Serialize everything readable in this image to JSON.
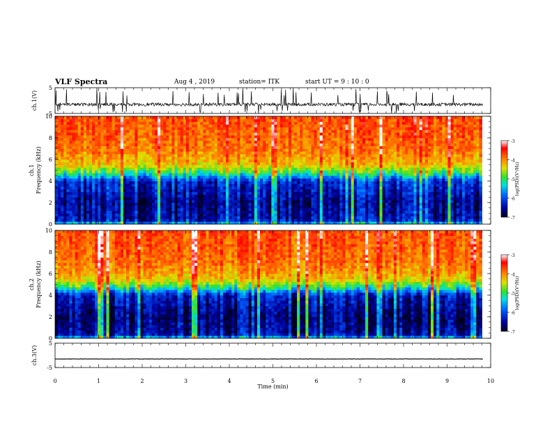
{
  "header": {
    "title": "VLF Spectra",
    "date": "Aug 4 , 2019",
    "station": "station= ITK",
    "start": "start UT =  9 : 10 : 0"
  },
  "chart_data": [
    {
      "type": "line",
      "panel": "ch1-waveform",
      "ylabel": "ch.1(V)",
      "yticks": [
        "5",
        "-5"
      ],
      "ylim": [
        -5,
        5
      ],
      "xlim": [
        0,
        10
      ],
      "baseline": -1.5,
      "description_series": "noisy trace around -1.5 V with spikes to about +5 and -5"
    },
    {
      "type": "heatmap",
      "panel": "ch1-spectrogram",
      "ylabel": "ch.1 Frequency (kHz)",
      "yticks": [
        "0",
        "2",
        "4",
        "6",
        "8",
        "10"
      ],
      "ylim": [
        0,
        10
      ],
      "xlim": [
        0,
        9.8
      ],
      "colorbar": {
        "label": "log(PSD)(V²/Hz)",
        "ticks": [
          "-3",
          "-4",
          "-5",
          "-6",
          "-7"
        ],
        "range": [
          -7,
          -3
        ],
        "colors": [
          "#000020",
          "#0000a0",
          "#0060ff",
          "#00e0e0",
          "#30e030",
          "#e0e000",
          "#ff8000",
          "#ff0000",
          "#ffffff"
        ]
      },
      "levels_by_frequency_kHz": [
        {
          "f": 0.0,
          "value": -5.3
        },
        {
          "f": 0.4,
          "value": -6.4
        },
        {
          "f": 2.0,
          "value": -6.6
        },
        {
          "f": 4.0,
          "value": -6.2
        },
        {
          "f": 4.8,
          "value": -5.0
        },
        {
          "f": 5.5,
          "value": -4.3
        },
        {
          "f": 7.0,
          "value": -3.9
        },
        {
          "f": 10.0,
          "value": -3.7
        }
      ]
    },
    {
      "type": "heatmap",
      "panel": "ch2-spectrogram",
      "ylabel": "ch.2 Frequency (kHz)",
      "yticks": [
        "0",
        "2",
        "4",
        "6",
        "8",
        "10"
      ],
      "ylim": [
        0,
        10
      ],
      "xlim": [
        0,
        9.8
      ],
      "colorbar": {
        "label": "log(PSD)(V²/Hz)",
        "ticks": [
          "-3",
          "-4",
          "-5",
          "-6",
          "-7"
        ],
        "range": [
          -7,
          -3
        ],
        "colors": [
          "#000020",
          "#0000a0",
          "#0060ff",
          "#00e0e0",
          "#30e030",
          "#e0e000",
          "#ff8000",
          "#ff0000",
          "#ffffff"
        ]
      },
      "levels_by_frequency_kHz": [
        {
          "f": 0.0,
          "value": -5.3
        },
        {
          "f": 0.4,
          "value": -6.5
        },
        {
          "f": 2.0,
          "value": -6.7
        },
        {
          "f": 4.0,
          "value": -6.3
        },
        {
          "f": 4.8,
          "value": -5.0
        },
        {
          "f": 5.5,
          "value": -4.3
        },
        {
          "f": 7.0,
          "value": -3.9
        },
        {
          "f": 10.0,
          "value": -3.7
        }
      ]
    },
    {
      "type": "line",
      "panel": "ch3-waveform",
      "ylabel": "ch.3(V)",
      "yticks": [
        "5",
        "-5"
      ],
      "ylim": [
        -5,
        5
      ],
      "xlim": [
        0,
        10
      ],
      "baseline": -1.5,
      "xlabel": "Time (min)",
      "xticks": [
        "0",
        "1",
        "2",
        "3",
        "4",
        "5",
        "6",
        "7",
        "8",
        "9",
        "10"
      ]
    }
  ]
}
